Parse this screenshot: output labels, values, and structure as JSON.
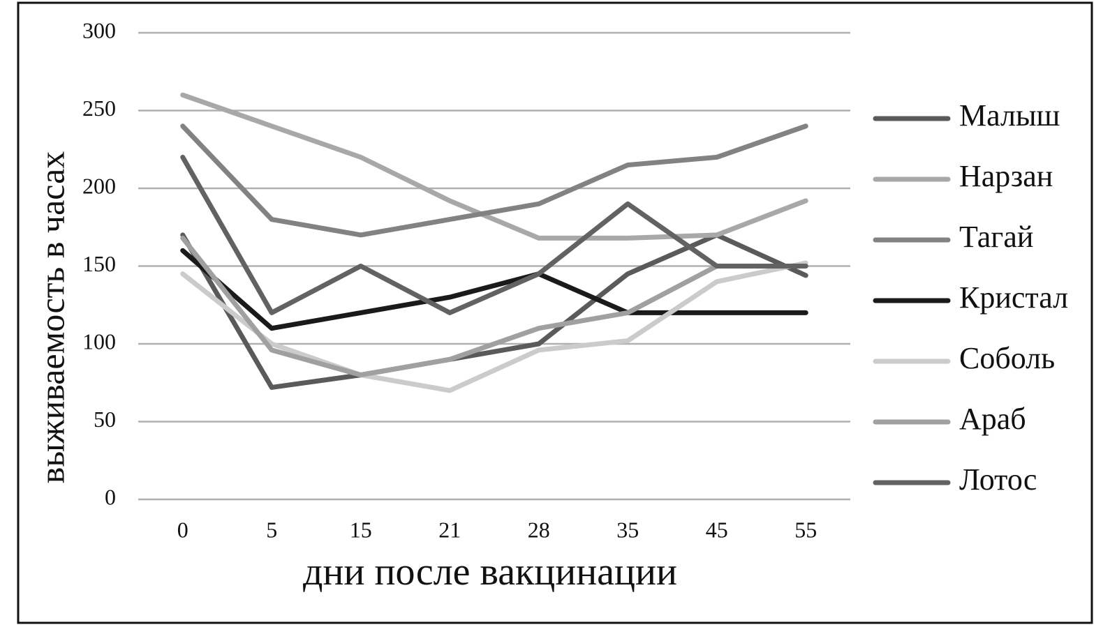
{
  "chart_data": {
    "type": "line",
    "x_label": "дни  после вакцинации",
    "y_label": "выживаемость в часах",
    "categories": [
      "0",
      "5",
      "15",
      "21",
      "28",
      "35",
      "45",
      "55"
    ],
    "ylim": [
      0,
      300
    ],
    "yticks": [
      0,
      50,
      100,
      150,
      200,
      250,
      300
    ],
    "grid": true,
    "legend": "right",
    "series": [
      {
        "name": "Малыш",
        "color": "#5a5a5a",
        "values": [
          170,
          72,
          80,
          90,
          100,
          145,
          170,
          144
        ]
      },
      {
        "name": "Нарзан",
        "color": "#a8a8a8",
        "values": [
          260,
          240,
          220,
          192,
          168,
          168,
          170,
          192
        ]
      },
      {
        "name": "Тагай",
        "color": "#828282",
        "values": [
          240,
          180,
          170,
          180,
          190,
          215,
          220,
          240
        ]
      },
      {
        "name": "Кристал",
        "color": "#1a1a1a",
        "values": [
          160,
          110,
          120,
          130,
          145,
          120,
          120,
          120
        ]
      },
      {
        "name": "Соболь",
        "color": "#cbcbcb",
        "values": [
          145,
          100,
          80,
          70,
          96,
          102,
          140,
          152
        ]
      },
      {
        "name": "Араб",
        "color": "#a0a0a0",
        "values": [
          168,
          96,
          80,
          90,
          110,
          120,
          150,
          null
        ]
      },
      {
        "name": "Лотос",
        "color": "#626262",
        "values": [
          220,
          120,
          150,
          120,
          145,
          190,
          150,
          150
        ]
      }
    ]
  }
}
